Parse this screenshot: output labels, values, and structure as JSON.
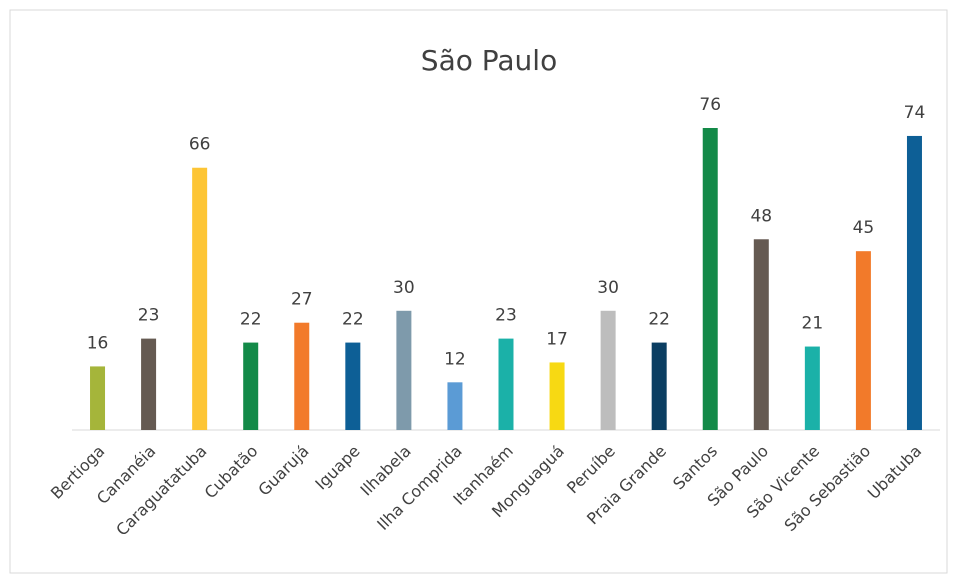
{
  "chart_data": {
    "type": "bar",
    "title": "São Paulo",
    "categories": [
      "Bertioga",
      "Cananéia",
      "Caraguatatuba",
      "Cubatão",
      "Guarujá",
      "Iguape",
      "Ilhabela",
      "Ilha Comprida",
      "Itanhaém",
      "Monguaguá",
      "Peruíbe",
      "Praia Grande",
      "Santos",
      "São Paulo",
      "São Vicente",
      "São Sebastião",
      "Ubatuba"
    ],
    "values": [
      16,
      23,
      66,
      22,
      27,
      22,
      30,
      12,
      23,
      17,
      30,
      22,
      76,
      48,
      21,
      45,
      74
    ],
    "colors": [
      "#a5b53a",
      "#655a52",
      "#fdc535",
      "#138a48",
      "#f27a2a",
      "#0d5f96",
      "#7e9aab",
      "#5b9bd5",
      "#1bb1a8",
      "#f7d913",
      "#bdbdbd",
      "#0b3e62",
      "#138a48",
      "#655a52",
      "#1bb1a8",
      "#f27a2a",
      "#0d5f96"
    ]
  }
}
